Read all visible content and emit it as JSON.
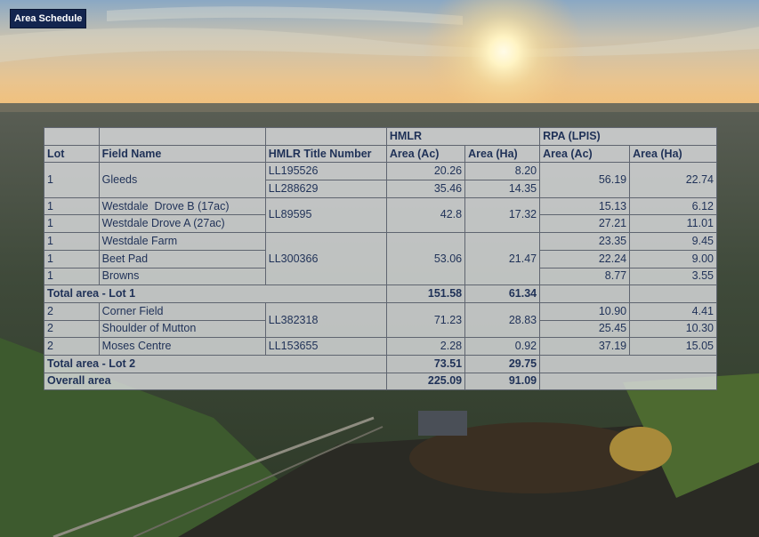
{
  "badge": {
    "label": "Area Schedule"
  },
  "headers": {
    "hmlr_group": "HMLR",
    "rpa_group": "RPA (LPIS)",
    "lot": "Lot",
    "field_name": "Field Name",
    "title_number": "HMLR Title Number",
    "hmlr_area_ac": "Area (Ac)",
    "hmlr_area_ha": "Area (Ha)",
    "rpa_area_ac": "Area (Ac)",
    "rpa_area_ha": "Area (Ha)"
  },
  "rows": {
    "gleeds": {
      "lot": "1",
      "field": "Gleeds",
      "rpa_ac": "56.19",
      "rpa_ha": "22.74"
    },
    "ll195526": {
      "title": "LL195526",
      "ac": "20.26",
      "ha": "8.20"
    },
    "ll288629": {
      "title": "LL288629",
      "ac": "35.46",
      "ha": "14.35"
    },
    "westdale_b": {
      "lot": "1",
      "field": "Westdale  Drove B (17ac)",
      "rpa_ac": "15.13",
      "rpa_ha": "6.12"
    },
    "westdale_a": {
      "lot": "1",
      "field": "Westdale Drove A (27ac)",
      "rpa_ac": "27.21",
      "rpa_ha": "11.01"
    },
    "ll89595": {
      "title": "LL89595",
      "ac": "42.8",
      "ha": "17.32"
    },
    "westdale_farm": {
      "lot": "1",
      "field": "Westdale Farm",
      "rpa_ac": "23.35",
      "rpa_ha": "9.45"
    },
    "beet_pad": {
      "lot": "1",
      "field": "Beet Pad",
      "rpa_ac": "22.24",
      "rpa_ha": "9.00"
    },
    "browns": {
      "lot": "1",
      "field": "Browns",
      "rpa_ac": "8.77",
      "rpa_ha": "3.55"
    },
    "ll300366": {
      "title": "LL300366",
      "ac": "53.06",
      "ha": "21.47"
    },
    "total_lot1": {
      "label": "Total area - Lot 1",
      "ac": "151.58",
      "ha": "61.34"
    },
    "corner_field": {
      "lot": "2",
      "field": "Corner Field",
      "rpa_ac": "10.90",
      "rpa_ha": "4.41"
    },
    "shoulder": {
      "lot": "2",
      "field": "Shoulder of Mutton",
      "rpa_ac": "25.45",
      "rpa_ha": "10.30"
    },
    "ll382318": {
      "title": "LL382318",
      "ac": "71.23",
      "ha": "28.83"
    },
    "moses": {
      "lot": "2",
      "field": "Moses Centre",
      "rpa_ac": "37.19",
      "rpa_ha": "15.05"
    },
    "ll153655": {
      "title": "LL153655",
      "ac": "2.28",
      "ha": "0.92"
    },
    "total_lot2": {
      "label": "Total area - Lot 2",
      "ac": "73.51",
      "ha": "29.75"
    },
    "overall": {
      "label": "Overall area",
      "ac": "225.09",
      "ha": "91.09"
    }
  }
}
